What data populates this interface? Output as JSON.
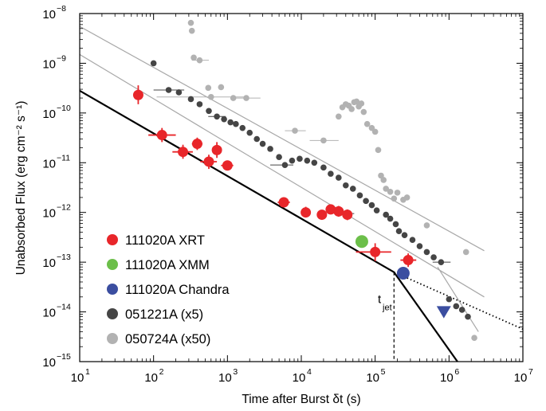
{
  "chart_data": {
    "type": "scatter",
    "xlabel": "Time after Burst δt (s)",
    "ylabel": "Unabsorbed Flux (erg cm⁻² s⁻¹)",
    "xscale": "log",
    "yscale": "log",
    "xlim": [
      10,
      10000000
    ],
    "ylim": [
      1e-15,
      1e-08
    ],
    "x_ticks": [
      {
        "value": 10,
        "base": "10",
        "exp": "1"
      },
      {
        "value": 100,
        "base": "10",
        "exp": "2"
      },
      {
        "value": 1000,
        "base": "10",
        "exp": "3"
      },
      {
        "value": 10000,
        "base": "10",
        "exp": "4"
      },
      {
        "value": 100000,
        "base": "10",
        "exp": "5"
      },
      {
        "value": 1000000,
        "base": "10",
        "exp": "6"
      },
      {
        "value": 10000000,
        "base": "10",
        "exp": "7"
      }
    ],
    "y_ticks": [
      {
        "value": 1e-15,
        "base": "10",
        "exp": "−15"
      },
      {
        "value": 1e-14,
        "base": "10",
        "exp": "−14"
      },
      {
        "value": 1e-13,
        "base": "10",
        "exp": "−13"
      },
      {
        "value": 1e-12,
        "base": "10",
        "exp": "−12"
      },
      {
        "value": 1e-11,
        "base": "10",
        "exp": "−11"
      },
      {
        "value": 1e-10,
        "base": "10",
        "exp": "−10"
      },
      {
        "value": 1e-09,
        "base": "10",
        "exp": "−9"
      },
      {
        "value": 1e-08,
        "base": "10",
        "exp": "−8"
      }
    ],
    "legend_position": "bottom-left",
    "annotations": [
      {
        "text": "t",
        "sub": "jet",
        "x": 170000,
        "y": 1.4e-14
      }
    ],
    "lines": [
      {
        "name": "111020A fit pre-break",
        "color": "#000000",
        "style": "solid",
        "width": 2.2,
        "points": [
          [
            10,
            2.8e-10
          ],
          [
            180000,
            6.3e-14
          ]
        ]
      },
      {
        "name": "111020A fit post-break",
        "color": "#000000",
        "style": "solid",
        "width": 2.2,
        "points": [
          [
            180000,
            6.3e-14
          ],
          [
            1300000,
            1e-15
          ]
        ]
      },
      {
        "name": "111020A fit extrapolation",
        "color": "#000000",
        "style": "dotted",
        "width": 1.8,
        "points": [
          [
            180000,
            6.3e-14
          ],
          [
            10000000,
            4.5e-15
          ]
        ]
      },
      {
        "name": "t_jet marker",
        "color": "#000000",
        "style": "dashed",
        "width": 1.2,
        "points": [
          [
            180000,
            6.3e-14
          ],
          [
            180000,
            1e-15
          ]
        ]
      },
      {
        "name": "051221A model",
        "color": "#a8a8a8",
        "style": "solid",
        "width": 1.2,
        "points": [
          [
            10,
            1.5e-09
          ],
          [
            3000000,
            2e-14
          ]
        ]
      },
      {
        "name": "050724A model 1",
        "color": "#a8a8a8",
        "style": "solid",
        "width": 1.2,
        "points": [
          [
            10,
            5.5e-09
          ],
          [
            3000000,
            1.7e-13
          ]
        ]
      },
      {
        "name": "050724A model 2",
        "color": "#a8a8a8",
        "style": "solid",
        "width": 1.2,
        "points": [
          [
            700000,
            8e-14
          ],
          [
            2500000,
            4e-15
          ]
        ]
      }
    ],
    "series": [
      {
        "name": "111020A XRT",
        "color": "#e8262a",
        "marker": "circle",
        "size": 6.5,
        "points": [
          {
            "x": 62,
            "y": 2.3e-10,
            "xerr": [
              62,
              62
            ],
            "yerr": [
              1.5e-10,
              3.6e-10
            ]
          },
          {
            "x": 130,
            "y": 3.6e-11,
            "xerr": [
              85,
              200
            ],
            "yerr": [
              2.6e-11,
              5e-11
            ]
          },
          {
            "x": 250,
            "y": 1.65e-11,
            "xerr": [
              180,
              340
            ],
            "yerr": [
              1.2e-11,
              2.3e-11
            ]
          },
          {
            "x": 390,
            "y": 2.4e-11,
            "xerr": [
              330,
              460
            ],
            "yerr": [
              1.8e-11,
              3.2e-11
            ]
          },
          {
            "x": 560,
            "y": 1.05e-11,
            "xerr": [
              430,
              720
            ],
            "yerr": [
              7.5e-12,
              1.45e-11
            ]
          },
          {
            "x": 720,
            "y": 1.8e-11,
            "xerr": [
              720,
              720
            ],
            "yerr": [
              1.25e-11,
              2.6e-11
            ]
          },
          {
            "x": 1000,
            "y": 8.8e-12,
            "xerr": [
              820,
              1200
            ],
            "yerr": [
              7.5e-12,
              1e-11
            ]
          },
          {
            "x": 5800,
            "y": 1.6e-12,
            "xerr": [
              4800,
              7000
            ],
            "yerr": [
              1.3e-12,
              2e-12
            ]
          },
          {
            "x": 11500,
            "y": 1e-12,
            "xerr": [
              10000,
              13000
            ],
            "yerr": [
              8e-13,
              1.3e-12
            ]
          },
          {
            "x": 19000,
            "y": 9e-13,
            "xerr": [
              17000,
              21000
            ],
            "yerr": [
              7.2e-13,
              1.12e-12
            ]
          },
          {
            "x": 25000,
            "y": 1.15e-12,
            "xerr": [
              22000,
              28000
            ],
            "yerr": [
              9.2e-13,
              1.45e-12
            ]
          },
          {
            "x": 32000,
            "y": 1.05e-12,
            "xerr": [
              29000,
              35000
            ],
            "yerr": [
              8.2e-13,
              1.35e-12
            ]
          },
          {
            "x": 42000,
            "y": 9e-13,
            "xerr": [
              38000,
              46000
            ],
            "yerr": [
              7e-13,
              1.15e-12
            ]
          },
          {
            "x": 100000,
            "y": 1.6e-13,
            "xerr": [
              55000,
              165000
            ],
            "yerr": [
              1.05e-13,
              2.4e-13
            ]
          },
          {
            "x": 280000,
            "y": 1.1e-13,
            "xerr": [
              220000,
              360000
            ],
            "yerr": [
              8e-14,
              1.5e-13
            ]
          }
        ]
      },
      {
        "name": "111020A XMM",
        "color": "#6cbf4a",
        "marker": "circle",
        "size": 8,
        "points": [
          {
            "x": 66000,
            "y": 2.6e-13
          }
        ]
      },
      {
        "name": "111020A Chandra",
        "color": "#3b4ea0",
        "marker": "circle",
        "size": 8,
        "points": [
          {
            "x": 240000,
            "y": 6e-14
          }
        ]
      },
      {
        "name": "111020A Chandra upper limit",
        "color": "#3b4ea0",
        "marker": "triangle-down",
        "size": 9,
        "points": [
          {
            "x": 850000,
            "y": 1e-14
          }
        ]
      },
      {
        "name": "051221A (x5)",
        "color": "#454545",
        "marker": "circle",
        "size": 3.8,
        "points": [
          {
            "x": 100,
            "y": 1e-09
          },
          {
            "x": 160,
            "y": 2.9e-10,
            "xerr": [
              100,
              260
            ]
          },
          {
            "x": 220,
            "y": 2.6e-10
          },
          {
            "x": 320,
            "y": 1.9e-10
          },
          {
            "x": 420,
            "y": 1.5e-10
          },
          {
            "x": 560,
            "y": 1.1e-10
          },
          {
            "x": 720,
            "y": 8.5e-11,
            "xerr": [
              550,
              950
            ]
          },
          {
            "x": 900,
            "y": 7.5e-11
          },
          {
            "x": 1100,
            "y": 6.5e-11
          },
          {
            "x": 1300,
            "y": 6e-11
          },
          {
            "x": 1600,
            "y": 5e-11
          },
          {
            "x": 2000,
            "y": 4e-11
          },
          {
            "x": 2500,
            "y": 3e-11
          },
          {
            "x": 3000,
            "y": 2.4e-11
          },
          {
            "x": 3800,
            "y": 1.9e-11
          },
          {
            "x": 5000,
            "y": 1.3e-11
          },
          {
            "x": 6000,
            "y": 9e-12,
            "xerr": [
              3800,
              7800
            ]
          },
          {
            "x": 7500,
            "y": 1.1e-11
          },
          {
            "x": 9500,
            "y": 1.2e-11
          },
          {
            "x": 12000,
            "y": 1.1e-11
          },
          {
            "x": 15000,
            "y": 1e-11
          },
          {
            "x": 20000,
            "y": 8e-12
          },
          {
            "x": 25000,
            "y": 6e-12
          },
          {
            "x": 32000,
            "y": 5e-12
          },
          {
            "x": 40000,
            "y": 3.5e-12
          },
          {
            "x": 50000,
            "y": 3e-12
          },
          {
            "x": 62000,
            "y": 2.2e-12
          },
          {
            "x": 75000,
            "y": 1.7e-12
          },
          {
            "x": 90000,
            "y": 1.4e-12
          },
          {
            "x": 105000,
            "y": 1.1e-12
          },
          {
            "x": 140000,
            "y": 9e-13
          },
          {
            "x": 160000,
            "y": 7.5e-13
          },
          {
            "x": 190000,
            "y": 5.8e-13
          },
          {
            "x": 210000,
            "y": 4.2e-13
          },
          {
            "x": 250000,
            "y": 3.5e-13
          },
          {
            "x": 320000,
            "y": 2.8e-13
          },
          {
            "x": 400000,
            "y": 2.1e-13
          },
          {
            "x": 500000,
            "y": 1.6e-13
          },
          {
            "x": 620000,
            "y": 1.25e-13
          },
          {
            "x": 780000,
            "y": 1e-13,
            "xerr": [
              600000,
              1050000
            ]
          },
          {
            "x": 1000000,
            "y": 1.8e-14
          },
          {
            "x": 1250000,
            "y": 1.3e-14
          },
          {
            "x": 1500000,
            "y": 1.1e-14
          },
          {
            "x": 1800000,
            "y": 8e-15
          },
          {
            "x": 42000,
            "y": 9.5e-13,
            "xerr": [
              35000,
              52000
            ]
          }
        ]
      },
      {
        "name": "050724A (x50)",
        "color": "#b2b2b2",
        "marker": "circle",
        "size": 3.8,
        "points": [
          {
            "x": 320,
            "y": 6.5e-09
          },
          {
            "x": 330,
            "y": 4.5e-09
          },
          {
            "x": 350,
            "y": 1.3e-09
          },
          {
            "x": 420,
            "y": 1.15e-09,
            "xerr": [
              330,
              560
            ]
          },
          {
            "x": 550,
            "y": 3.2e-10
          },
          {
            "x": 820,
            "y": 3.3e-10
          },
          {
            "x": 600,
            "y": 2.1e-10,
            "xerr": [
              110,
              1900
            ]
          },
          {
            "x": 1200,
            "y": 2e-10
          },
          {
            "x": 1800,
            "y": 2e-10,
            "xerr": [
              1100,
              2800
            ]
          },
          {
            "x": 8200,
            "y": 4.4e-11,
            "xerr": [
              6000,
              11500
            ]
          },
          {
            "x": 20000,
            "y": 2.8e-11,
            "xerr": [
              13000,
              32000
            ]
          },
          {
            "x": 32000,
            "y": 8.5e-11
          },
          {
            "x": 36000,
            "y": 1.3e-10
          },
          {
            "x": 40000,
            "y": 1.5e-10
          },
          {
            "x": 44000,
            "y": 1.4e-10
          },
          {
            "x": 48000,
            "y": 1.2e-10
          },
          {
            "x": 52000,
            "y": 1.65e-10
          },
          {
            "x": 56000,
            "y": 1.7e-10
          },
          {
            "x": 60000,
            "y": 1.35e-10
          },
          {
            "x": 65000,
            "y": 1.55e-10
          },
          {
            "x": 70000,
            "y": 1.05e-10
          },
          {
            "x": 78000,
            "y": 6e-11
          },
          {
            "x": 90000,
            "y": 5e-11
          },
          {
            "x": 100000,
            "y": 4.2e-11
          },
          {
            "x": 110000,
            "y": 1.8e-11
          },
          {
            "x": 120000,
            "y": 5.5e-12
          },
          {
            "x": 130000,
            "y": 4.5e-12
          },
          {
            "x": 140000,
            "y": 3e-12
          },
          {
            "x": 160000,
            "y": 2.6e-12
          },
          {
            "x": 180000,
            "y": 1.9e-12
          },
          {
            "x": 200000,
            "y": 2.5e-12
          },
          {
            "x": 240000,
            "y": 1.8e-12
          },
          {
            "x": 270000,
            "y": 2e-12
          },
          {
            "x": 500000,
            "y": 5.5e-13
          },
          {
            "x": 1700000,
            "y": 1.6e-13
          },
          {
            "x": 2200000,
            "y": 3e-15
          }
        ]
      }
    ]
  }
}
